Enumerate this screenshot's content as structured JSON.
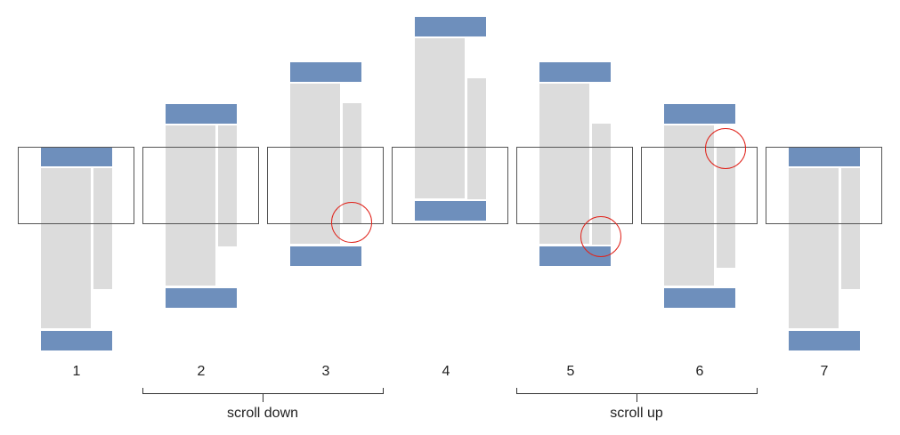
{
  "colors": {
    "header": "#6e8fbc",
    "content": "#dcdcdc",
    "viewport_border": "#555555",
    "highlight": "#e0231b"
  },
  "steps": [
    {
      "label": "1"
    },
    {
      "label": "2"
    },
    {
      "label": "3"
    },
    {
      "label": "4"
    },
    {
      "label": "5"
    },
    {
      "label": "6"
    },
    {
      "label": "7"
    }
  ],
  "groups": [
    {
      "label": "scroll down"
    },
    {
      "label": "scroll up"
    }
  ]
}
